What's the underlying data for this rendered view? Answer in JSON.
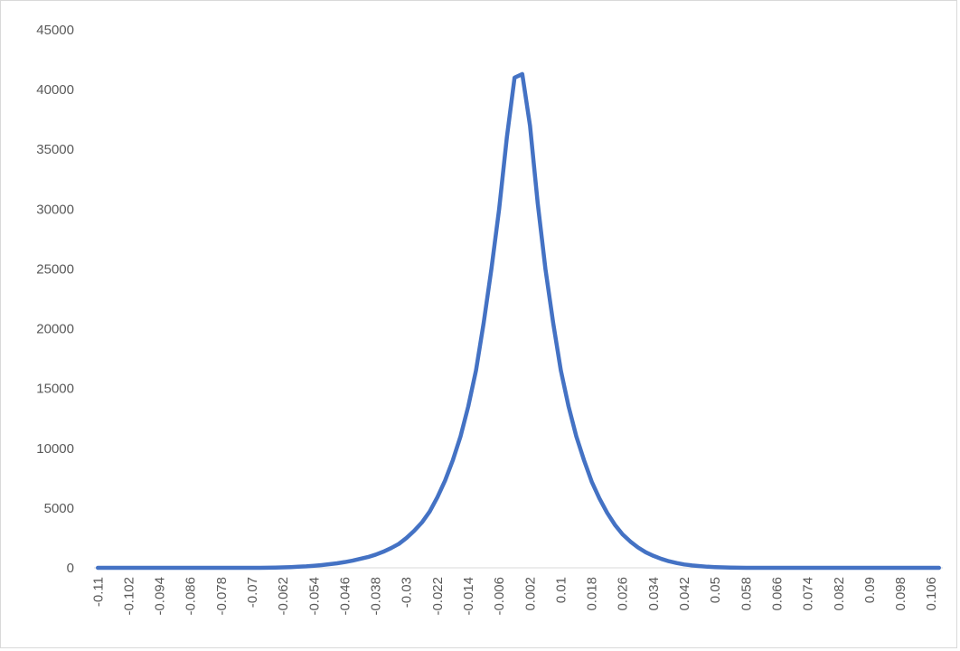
{
  "chart_data": {
    "type": "line",
    "color": "#4472c4",
    "categories": [
      "-0.11",
      null,
      null,
      null,
      "-0.102",
      null,
      null,
      null,
      "-0.094",
      null,
      null,
      null,
      "-0.086",
      null,
      null,
      null,
      "-0.078",
      null,
      null,
      null,
      "-0.07",
      null,
      null,
      null,
      "-0.062",
      null,
      null,
      null,
      "-0.054",
      null,
      null,
      null,
      "-0.046",
      null,
      null,
      null,
      "-0.038",
      null,
      null,
      null,
      "-0.03",
      null,
      null,
      null,
      "-0.022",
      null,
      null,
      null,
      "-0.014",
      null,
      null,
      null,
      "-0.006",
      null,
      null,
      null,
      "0.002",
      null,
      null,
      null,
      "0.01",
      null,
      null,
      null,
      "0.018",
      null,
      null,
      null,
      "0.026",
      null,
      null,
      null,
      "0.034",
      null,
      null,
      null,
      "0.042",
      null,
      null,
      null,
      "0.05",
      null,
      null,
      null,
      "0.058",
      null,
      null,
      null,
      "0.066",
      null,
      null,
      null,
      "0.074",
      null,
      null,
      null,
      "0.082",
      null,
      null,
      null,
      "0.09",
      null,
      null,
      null,
      "0.098",
      null,
      null,
      null,
      "0.106",
      null
    ],
    "values": [
      0,
      0,
      0,
      0,
      0,
      0,
      0,
      0,
      0,
      0,
      0,
      0,
      0,
      0,
      0,
      0,
      0,
      0,
      0,
      0,
      0,
      0,
      10,
      20,
      40,
      60,
      90,
      120,
      170,
      230,
      300,
      380,
      480,
      600,
      750,
      900,
      1100,
      1350,
      1650,
      2000,
      2500,
      3100,
      3800,
      4700,
      5900,
      7300,
      9000,
      11000,
      13500,
      16500,
      20500,
      25000,
      30000,
      36000,
      41000,
      41300,
      37000,
      30500,
      25000,
      20500,
      16500,
      13500,
      11000,
      9000,
      7200,
      5800,
      4600,
      3600,
      2800,
      2200,
      1700,
      1300,
      1000,
      750,
      550,
      400,
      280,
      200,
      140,
      90,
      60,
      40,
      20,
      10,
      0,
      0,
      0,
      0,
      0,
      0,
      0,
      0,
      0,
      0,
      0,
      0,
      0,
      0,
      0,
      0,
      0,
      0,
      0,
      0,
      0,
      0,
      0,
      0,
      0,
      0
    ],
    "ylim": [
      0,
      45000
    ],
    "yticks": [
      0,
      5000,
      10000,
      15000,
      20000,
      25000,
      30000,
      35000,
      40000,
      45000
    ],
    "grid": false
  }
}
